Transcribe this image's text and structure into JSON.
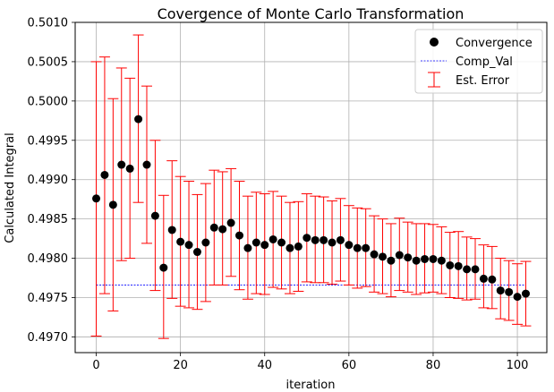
{
  "chart_data": {
    "type": "scatter",
    "title": "Covergence of Monte Carlo Transformation",
    "xlabel": "iteration",
    "ylabel": "Calculated Integral",
    "xlim": [
      -5,
      107
    ],
    "ylim": [
      0.4968,
      0.501
    ],
    "grid": true,
    "legend_position": "top-right",
    "x_ticks": [
      0,
      20,
      40,
      60,
      80,
      100
    ],
    "x_tick_labels": [
      "0",
      "20",
      "40",
      "60",
      "80",
      "100"
    ],
    "y_ticks": [
      0.497,
      0.4975,
      0.498,
      0.4985,
      0.499,
      0.4995,
      0.5,
      0.5005,
      0.501
    ],
    "y_tick_labels": [
      "0.4970",
      "0.4975",
      "0.4980",
      "0.4985",
      "0.4990",
      "0.4995",
      "0.5000",
      "0.5005",
      "0.5010"
    ],
    "legend": [
      "Convergence",
      "Comp_Val",
      "Est. Error"
    ],
    "colors": {
      "convergence": "#000000",
      "comp_val": "#0000ff",
      "error": "#ff0000",
      "grid": "#b0b0b0"
    },
    "series": [
      {
        "name": "Convergence",
        "style": "markers",
        "x": [
          0,
          2,
          4,
          6,
          8,
          10,
          12,
          14,
          16,
          18,
          20,
          22,
          24,
          26,
          28,
          30,
          32,
          34,
          36,
          38,
          40,
          42,
          44,
          46,
          48,
          50,
          52,
          54,
          56,
          58,
          60,
          62,
          64,
          66,
          68,
          70,
          72,
          74,
          76,
          78,
          80,
          82,
          84,
          86,
          88,
          90,
          92,
          94,
          96,
          98,
          100,
          102
        ],
        "values": [
          0.49876,
          0.49906,
          0.49868,
          0.49919,
          0.49914,
          0.49977,
          0.49919,
          0.49854,
          0.49788,
          0.49836,
          0.49821,
          0.49817,
          0.49808,
          0.4982,
          0.49839,
          0.49837,
          0.49845,
          0.49829,
          0.49813,
          0.4982,
          0.49817,
          0.49824,
          0.4982,
          0.49813,
          0.49815,
          0.49826,
          0.49823,
          0.49823,
          0.4982,
          0.49823,
          0.49817,
          0.49813,
          0.49813,
          0.49805,
          0.49802,
          0.49797,
          0.49804,
          0.49801,
          0.49797,
          0.49799,
          0.49799,
          0.49797,
          0.49791,
          0.4979,
          0.49786,
          0.49786,
          0.49774,
          0.49773,
          0.49759,
          0.49757,
          0.49751,
          0.49755
        ]
      },
      {
        "name": "Comp_Val",
        "style": "dashed-line",
        "x": [
          0,
          102
        ],
        "values": [
          0.49766,
          0.49766
        ]
      },
      {
        "name": "Est. Error",
        "style": "errorbar",
        "x": [
          0,
          2,
          4,
          6,
          8,
          10,
          12,
          14,
          16,
          18,
          20,
          22,
          24,
          26,
          28,
          30,
          32,
          34,
          36,
          38,
          40,
          42,
          44,
          46,
          48,
          50,
          52,
          54,
          56,
          58,
          60,
          62,
          64,
          66,
          68,
          70,
          72,
          74,
          76,
          78,
          80,
          82,
          84,
          86,
          88,
          90,
          92,
          94,
          96,
          98,
          100,
          102
        ],
        "low": [
          0.49701,
          0.49755,
          0.49733,
          0.49797,
          0.498,
          0.49871,
          0.49819,
          0.49759,
          0.49698,
          0.49749,
          0.49739,
          0.49737,
          0.49735,
          0.49745,
          0.49766,
          0.49766,
          0.49777,
          0.4976,
          0.49748,
          0.49755,
          0.49754,
          0.49763,
          0.49761,
          0.49755,
          0.49758,
          0.4977,
          0.49769,
          0.49769,
          0.49767,
          0.49771,
          0.49766,
          0.49762,
          0.49764,
          0.49757,
          0.49755,
          0.49751,
          0.49759,
          0.49757,
          0.49754,
          0.49756,
          0.49757,
          0.49755,
          0.4975,
          0.49749,
          0.49747,
          0.49748,
          0.49737,
          0.49736,
          0.49723,
          0.49721,
          0.49716,
          0.49714
        ],
        "high": [
          0.5005,
          0.50056,
          0.50003,
          0.50042,
          0.50029,
          0.50084,
          0.50019,
          0.4995,
          0.4988,
          0.49924,
          0.49904,
          0.49898,
          0.49881,
          0.49895,
          0.49912,
          0.4991,
          0.49914,
          0.49898,
          0.49879,
          0.49884,
          0.49882,
          0.49885,
          0.49879,
          0.49871,
          0.49872,
          0.49882,
          0.49879,
          0.49878,
          0.49873,
          0.49876,
          0.49867,
          0.49864,
          0.49863,
          0.49854,
          0.4985,
          0.49844,
          0.49851,
          0.49846,
          0.49844,
          0.49844,
          0.49843,
          0.4984,
          0.49833,
          0.49834,
          0.49827,
          0.49825,
          0.49817,
          0.49815,
          0.498,
          0.49797,
          0.49793,
          0.49796
        ]
      }
    ]
  }
}
